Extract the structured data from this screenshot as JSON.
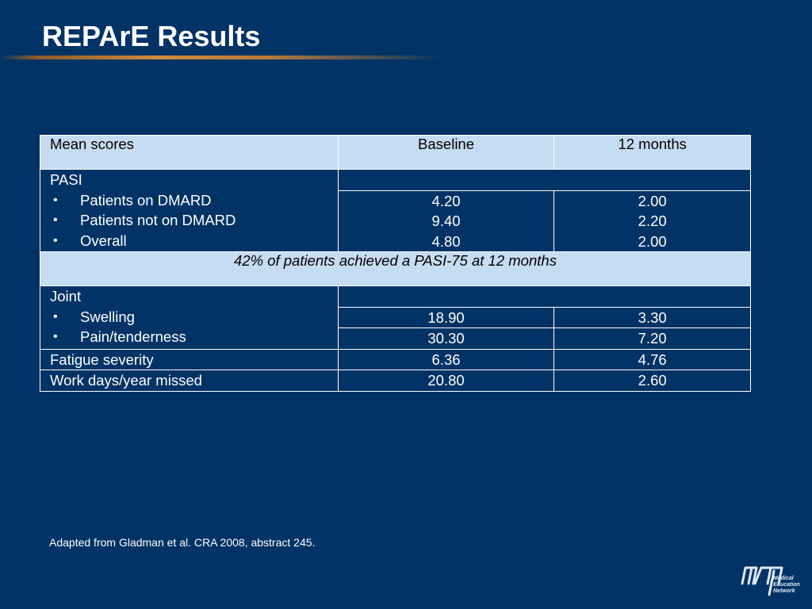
{
  "slide": {
    "title": "REPArE Results",
    "footnote": "Adapted from Gladman et al. CRA 2008, abstract 245."
  },
  "table": {
    "headers": [
      "Mean scores",
      "Baseline",
      "12 months"
    ],
    "pasi": {
      "label": "PASI",
      "items": [
        {
          "label": "Patients on DMARD",
          "baseline": "4.20",
          "month12": "2.00"
        },
        {
          "label": "Patients not on DMARD",
          "baseline": "9.40",
          "month12": "2.20"
        },
        {
          "label": "Overall",
          "baseline": "4.80",
          "month12": "2.00"
        }
      ]
    },
    "band_note": "42% of patients achieved a PASI-75 at 12 months",
    "joint": {
      "label": "Joint",
      "items": [
        {
          "label": "Swelling",
          "baseline": "18.90",
          "month12": "3.30"
        },
        {
          "label": "Pain/tenderness",
          "baseline": "30.30",
          "month12": "7.20"
        }
      ]
    },
    "other_rows": [
      {
        "label": "Fatigue severity",
        "baseline": "6.36",
        "month12": "4.76"
      },
      {
        "label": "Work days/year missed",
        "baseline": "20.80",
        "month12": "2.60"
      }
    ]
  },
  "logo": {
    "mark": "mcn",
    "lines": [
      "Medical",
      "Education",
      "Network"
    ],
    "icon": "mcn-logo-icon"
  },
  "colors": {
    "background": "#013366",
    "header_fill": "#c6dcf2",
    "accent_rule": "#d08a3c"
  }
}
